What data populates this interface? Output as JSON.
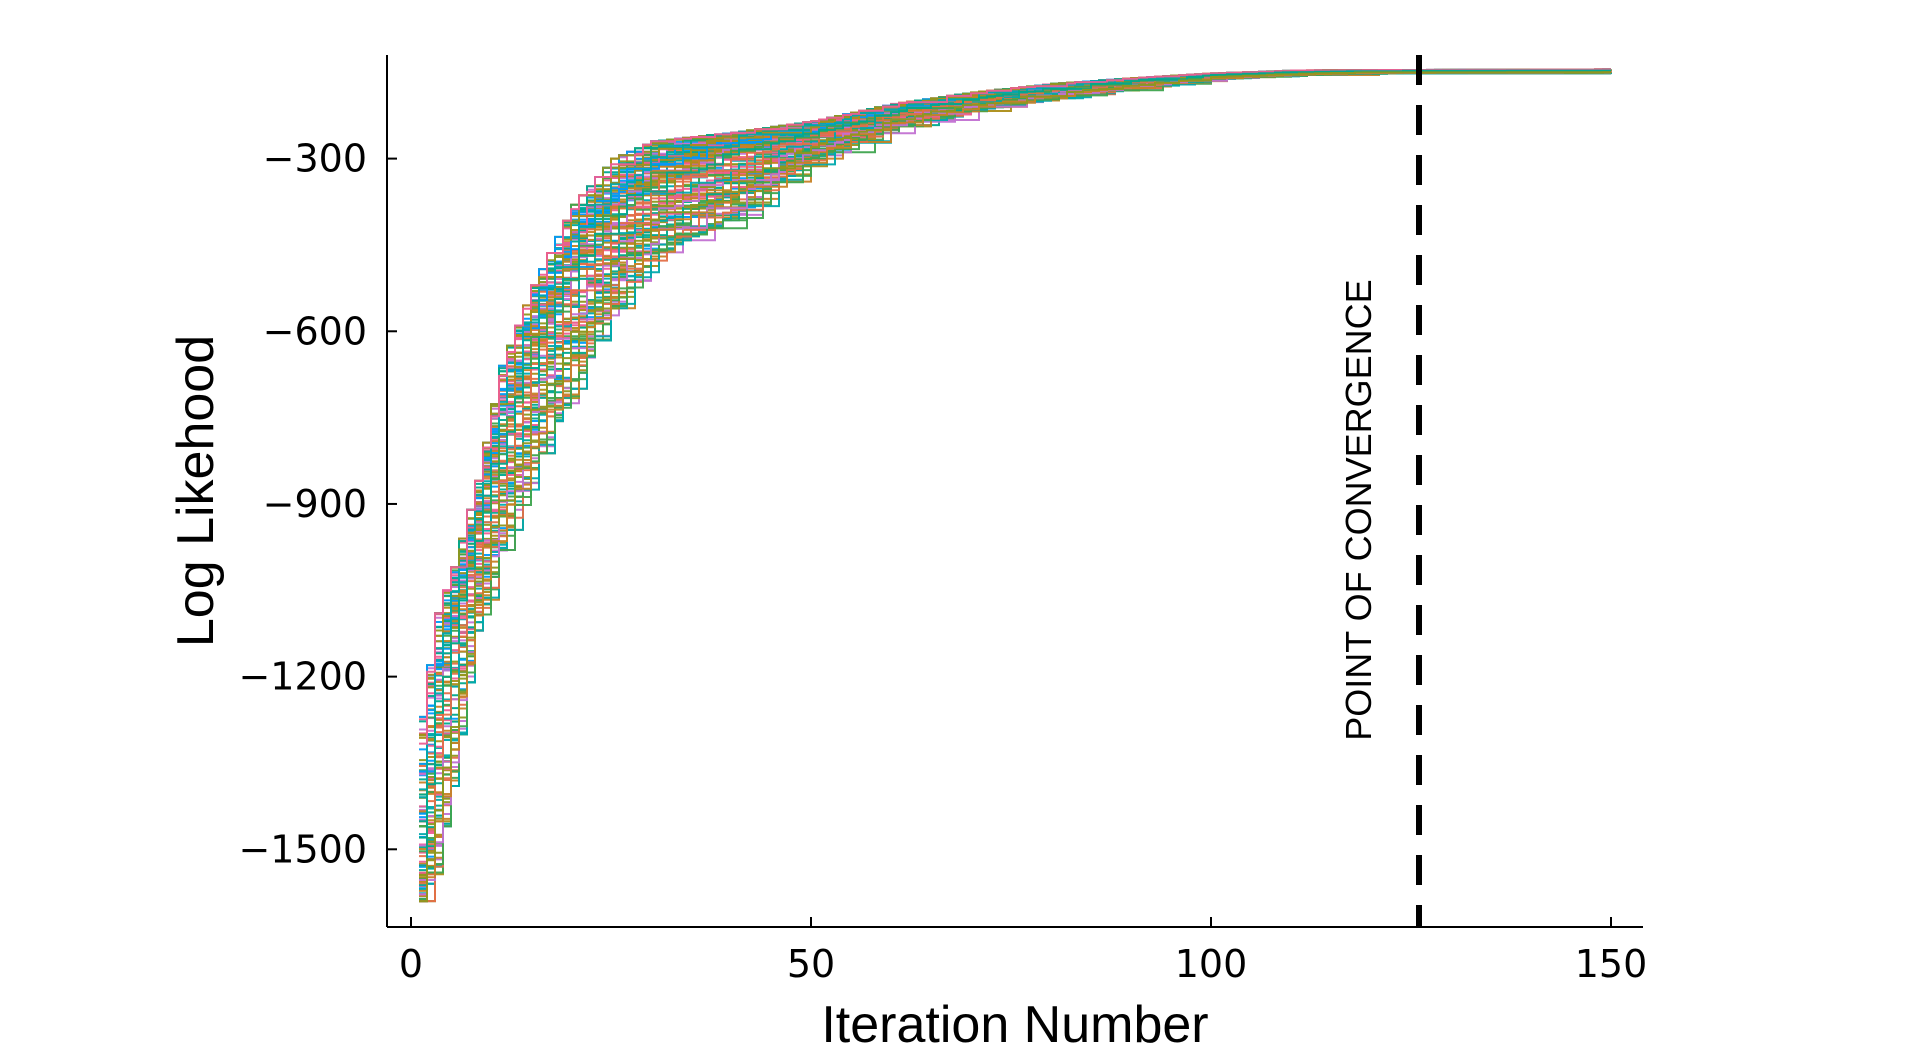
{
  "chart_data": {
    "type": "line",
    "title": "",
    "xlabel": "Iteration Number",
    "ylabel": "Log Likehood",
    "xlim": [
      -3,
      154
    ],
    "ylim": [
      -1635,
      -120
    ],
    "xticks": [
      0,
      50,
      100,
      150
    ],
    "yticks": [
      -300,
      -600,
      -900,
      -1200,
      -1500
    ],
    "grid": false,
    "legend": "none",
    "annotation": {
      "text": "POINT OF CONVERGENCE",
      "x": 126
    },
    "palette": [
      "#009AFA",
      "#E36F47",
      "#3EA44E",
      "#C271D2",
      "#AC8D18",
      "#00A9AD",
      "#ED5E93",
      "#C68225",
      "#00A98D",
      "#8E971E"
    ],
    "series_count": 120,
    "series_summary": {
      "x": [
        1,
        3,
        5,
        8,
        11,
        15,
        20,
        25,
        30,
        40,
        50,
        60,
        70,
        80,
        90,
        100,
        110,
        120,
        126,
        150
      ],
      "upper": [
        -1270,
        -1090,
        -1010,
        -860,
        -660,
        -520,
        -380,
        -300,
        -270,
        -255,
        -235,
        -205,
        -185,
        -170,
        -160,
        -152,
        -147,
        -146,
        -146,
        -145
      ],
      "median": [
        -1560,
        -1270,
        -1120,
        -960,
        -800,
        -640,
        -500,
        -410,
        -340,
        -290,
        -255,
        -220,
        -195,
        -178,
        -165,
        -155,
        -150,
        -148,
        -148,
        -147
      ],
      "lower": [
        -1590,
        -1530,
        -1390,
        -1120,
        -980,
        -840,
        -700,
        -560,
        -470,
        -400,
        -300,
        -245,
        -215,
        -195,
        -178,
        -162,
        -155,
        -152,
        -152,
        -152
      ]
    }
  }
}
